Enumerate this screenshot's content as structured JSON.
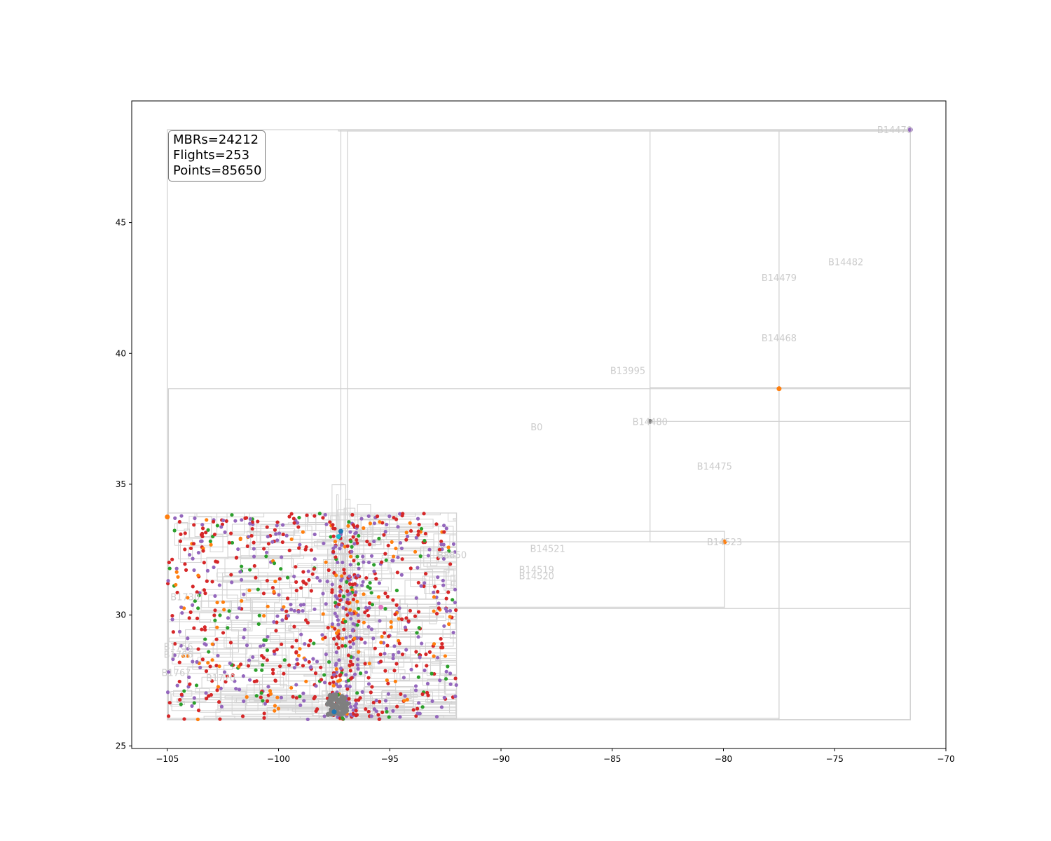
{
  "chart_data": {
    "type": "scatter",
    "title": "",
    "xlabel": "",
    "ylabel": "",
    "xlim": [
      -106.6,
      -70.0
    ],
    "ylim": [
      24.9,
      49.65
    ],
    "x_ticks": [
      -105,
      -100,
      -95,
      -90,
      -85,
      -80,
      -75,
      -70
    ],
    "x_tick_labels": [
      "−105",
      "−100",
      "−95",
      "−90",
      "−85",
      "−80",
      "−75",
      "−70"
    ],
    "y_ticks": [
      25,
      30,
      35,
      40,
      45
    ],
    "y_tick_labels": [
      "25",
      "30",
      "35",
      "40",
      "45"
    ],
    "grid": false,
    "stats": [
      "MBRs=24212",
      "Flights=253",
      "Points=85650"
    ],
    "mbr_color": "#d3d3d3",
    "label_color": "#cccccc",
    "series_colors": [
      "#d62728",
      "#9467bd",
      "#2ca02c",
      "#ff7f0e",
      "#1f77b4",
      "#7f7f7f",
      "#e377c2",
      "#17becf"
    ],
    "dense_region": {
      "x": [
        -105.0,
        -92.0
      ],
      "y": [
        26.0,
        33.9
      ]
    },
    "mbrs": [
      {
        "x": [
          -105.0,
          -71.6
        ],
        "y": [
          26.0,
          48.55
        ]
      },
      {
        "x": [
          -104.95,
          -71.6
        ],
        "y": [
          26.0,
          38.65
        ]
      },
      {
        "x": [
          -97.3,
          -71.6
        ],
        "y": [
          48.5,
          48.55
        ]
      },
      {
        "x": [
          -97.2,
          -71.6
        ],
        "y": [
          26.0,
          48.55
        ]
      },
      {
        "x": [
          -96.9,
          -71.6
        ],
        "y": [
          26.0,
          48.5
        ]
      },
      {
        "x": [
          -83.3,
          -71.6
        ],
        "y": [
          32.8,
          48.5
        ]
      },
      {
        "x": [
          -77.5,
          -71.6
        ],
        "y": [
          26.0,
          48.5
        ]
      },
      {
        "x": [
          -83.3,
          -71.6
        ],
        "y": [
          37.4,
          38.7
        ]
      },
      {
        "x": [
          -97.0,
          -71.6
        ],
        "y": [
          30.25,
          32.8
        ]
      },
      {
        "x": [
          -97.0,
          -79.95
        ],
        "y": [
          30.3,
          33.2
        ]
      },
      {
        "x": [
          -105.0,
          -77.5
        ],
        "y": [
          26.0,
          26.05
        ]
      },
      {
        "x": [
          -105.0,
          -92.0
        ],
        "y": [
          26.0,
          33.9
        ]
      }
    ],
    "mbr_labels": [
      {
        "text": "B14470",
        "x": -72.3,
        "y": 48.55
      },
      {
        "text": "B14482",
        "x": -74.5,
        "y": 43.5
      },
      {
        "text": "B14479",
        "x": -77.5,
        "y": 42.9
      },
      {
        "text": "B14468",
        "x": -77.5,
        "y": 40.6
      },
      {
        "text": "B13995",
        "x": -84.3,
        "y": 39.35
      },
      {
        "text": "B14480",
        "x": -83.3,
        "y": 37.4
      },
      {
        "text": "B0",
        "x": -88.4,
        "y": 37.2
      },
      {
        "text": "B14475",
        "x": -80.4,
        "y": 35.7
      },
      {
        "text": "B14523",
        "x": -79.95,
        "y": 32.8
      },
      {
        "text": "B14521",
        "x": -87.9,
        "y": 32.55
      },
      {
        "text": "B14519",
        "x": -88.4,
        "y": 31.75
      },
      {
        "text": "B14520",
        "x": -88.4,
        "y": 31.5
      },
      {
        "text": "B8850",
        "x": -92.2,
        "y": 32.3
      },
      {
        "text": "B1770",
        "x": -102.6,
        "y": 27.6
      },
      {
        "text": "B1756",
        "x": -104.5,
        "y": 28.8
      },
      {
        "text": "B1766",
        "x": -104.5,
        "y": 28.5
      },
      {
        "text": "B1767",
        "x": -104.6,
        "y": 27.8
      },
      {
        "text": "B1730",
        "x": -104.2,
        "y": 30.7
      }
    ],
    "special_points": [
      {
        "x": -71.6,
        "y": 48.55,
        "series": 1
      },
      {
        "x": -77.5,
        "y": 38.65,
        "series": 3
      },
      {
        "x": -83.3,
        "y": 37.4,
        "series": 5
      },
      {
        "x": -79.95,
        "y": 32.8,
        "series": 3
      },
      {
        "x": -105.0,
        "y": 33.75,
        "series": 3
      },
      {
        "x": -97.2,
        "y": 33.2,
        "series": 4
      },
      {
        "x": -97.3,
        "y": 33.0,
        "series": 7
      },
      {
        "x": -95.4,
        "y": 30.3,
        "series": 6
      },
      {
        "x": -97.5,
        "y": 26.3,
        "series": 4
      }
    ]
  }
}
